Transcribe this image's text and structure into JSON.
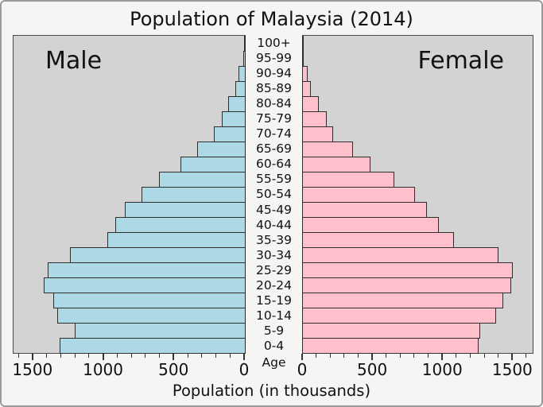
{
  "title": "Population of Malaysia (2014)",
  "left_side_label": "Male",
  "right_side_label": "Female",
  "xlabel": "Population (in thousands)",
  "age_axis_label": "Age",
  "colors": {
    "male_bar": "#ADD8E6",
    "female_bar": "#FFC0CB",
    "bar_edge": "#2e2e2e",
    "plot_bg": "#d3d3d3",
    "figure_bg": "#f5f5f4",
    "tick": "#333333"
  },
  "chart_data": {
    "type": "bar",
    "subtype": "population-pyramid",
    "title": "Population of Malaysia (2014)",
    "xlabel": "Population (in thousands)",
    "ylabel": "Age",
    "unit": "thousands of people",
    "orientation": "horizontal",
    "grid": false,
    "legend_position": "none",
    "xlim": [
      0,
      1640
    ],
    "x_ticks": [
      0,
      500,
      1000,
      1500
    ],
    "x_minor_step": 100,
    "categories": [
      "100+",
      "95-99",
      "90-94",
      "85-89",
      "80-84",
      "75-79",
      "70-74",
      "65-69",
      "60-64",
      "55-59",
      "50-54",
      "45-49",
      "40-44",
      "35-39",
      "30-34",
      "25-29",
      "20-24",
      "15-19",
      "10-14",
      "5-9",
      "0-4"
    ],
    "series": [
      {
        "name": "Male",
        "side": "left",
        "values": [
          8,
          18,
          48,
          72,
          122,
          169,
          225,
          343,
          460,
          613,
          737,
          857,
          924,
          979,
          1247,
          1406,
          1433,
          1362,
          1336,
          1213,
          1318
        ]
      },
      {
        "name": "Female",
        "side": "right",
        "values": [
          5,
          13,
          37,
          65,
          121,
          177,
          223,
          361,
          490,
          658,
          806,
          890,
          974,
          1085,
          1399,
          1501,
          1492,
          1434,
          1384,
          1269,
          1259
        ]
      }
    ]
  }
}
